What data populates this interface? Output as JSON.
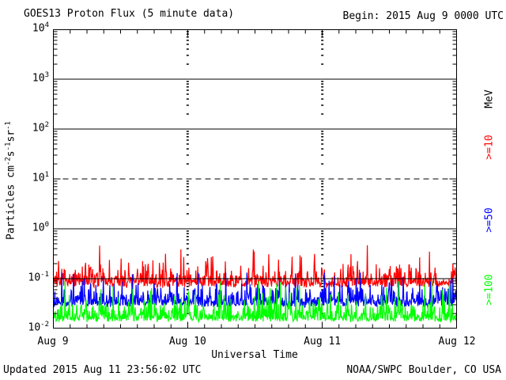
{
  "page": {
    "title": "GOES13 Proton Flux (5 minute data)",
    "begin_label": "Begin: 2015 Aug 9 0000 UTC",
    "updated_label": "Updated 2015 Aug 11 23:56:02 UTC",
    "source_label": "NOAA/SWPC Boulder, CO USA"
  },
  "chart_data": {
    "type": "line",
    "title": "GOES13 Proton Flux (5 minute data)",
    "xlabel": "Universal Time",
    "ylabel": "Particles cm-2 s-1 sr-1",
    "ylabel_parts": [
      [
        "Particles cm",
        false
      ],
      [
        "-2",
        true
      ],
      [
        "s",
        false
      ],
      [
        "-1",
        true
      ],
      [
        "sr",
        false
      ],
      [
        "-1",
        true
      ]
    ],
    "x_tick_labels": [
      "Aug 9",
      "Aug 10",
      "Aug 11",
      "Aug 12"
    ],
    "y_tick_exponents": [
      4,
      3,
      2,
      1,
      0,
      -1,
      -2
    ],
    "y_scale": "log",
    "ylim": [
      0.01,
      10000
    ],
    "x_range_days": 3,
    "x_minor_tick_hours": 3,
    "grid": {
      "hlines": [
        {
          "value": 1000,
          "style": "solid"
        },
        {
          "value": 100,
          "style": "solid"
        },
        {
          "value": 10,
          "style": "dashed"
        },
        {
          "value": 1,
          "style": "solid"
        },
        {
          "value": 0.1,
          "style": "solid"
        }
      ],
      "day_marker_lines_at_day": [
        1,
        2
      ]
    },
    "legend": {
      "units": "MeV",
      "position": "right",
      "entries": [
        ">=10",
        ">=50",
        ">=100"
      ]
    },
    "series": [
      {
        "label": ">=10",
        "energy": ">=10 MeV",
        "color": "#ff0000",
        "floor": 0.07,
        "typical": 0.1,
        "typical_max": 0.3,
        "max_spike": 0.46,
        "log_floor": -1.16,
        "log_scale": 0.15,
        "log_max": -0.33,
        "seed": 7,
        "forced_spike": {
          "x_frac": 0.115,
          "value": 0.46
        }
      },
      {
        "label": ">=50",
        "energy": ">=50 MeV",
        "color": "#0000ff",
        "floor": 0.028,
        "typical": 0.05,
        "typical_max": 0.1,
        "max_spike": 0.13,
        "log_floor": -1.55,
        "log_scale": 0.14,
        "log_max": -0.88,
        "seed": 13
      },
      {
        "label": ">=100",
        "energy": ">=100 MeV",
        "color": "#00ff00",
        "floor": 0.014,
        "typical": 0.02,
        "typical_max": 0.06,
        "max_spike": 0.09,
        "log_floor": -1.85,
        "log_scale": 0.15,
        "log_max": -1.05,
        "seed": 42
      }
    ],
    "points_per_series": 864,
    "sample_interval_minutes": 5
  }
}
